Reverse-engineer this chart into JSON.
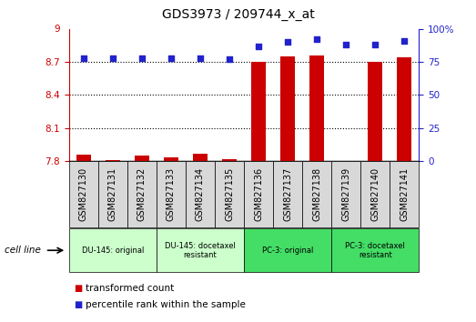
{
  "title": "GDS3973 / 209744_x_at",
  "samples": [
    "GSM827130",
    "GSM827131",
    "GSM827132",
    "GSM827133",
    "GSM827134",
    "GSM827135",
    "GSM827136",
    "GSM827137",
    "GSM827138",
    "GSM827139",
    "GSM827140",
    "GSM827141"
  ],
  "bar_values": [
    7.86,
    7.81,
    7.85,
    7.83,
    7.87,
    7.82,
    8.7,
    8.75,
    8.76,
    7.8,
    8.7,
    8.74
  ],
  "percentile_values": [
    78,
    78,
    78,
    78,
    78,
    77,
    87,
    90,
    92,
    88,
    88,
    91
  ],
  "ymin": 7.8,
  "ymax": 9.0,
  "yticks_left": [
    7.8,
    8.1,
    8.4,
    8.7
  ],
  "ytop_label": "9",
  "right_yticks": [
    0,
    25,
    50,
    75,
    100
  ],
  "bar_color": "#cc0000",
  "dot_color": "#2222cc",
  "groups": [
    {
      "label": "DU-145: original",
      "start": 0,
      "end": 3,
      "color": "#ccffcc"
    },
    {
      "label": "DU-145: docetaxel\nresistant",
      "start": 3,
      "end": 6,
      "color": "#ccffcc"
    },
    {
      "label": "PC-3: original",
      "start": 6,
      "end": 9,
      "color": "#44dd66"
    },
    {
      "label": "PC-3: docetaxel\nresistant",
      "start": 9,
      "end": 12,
      "color": "#44dd66"
    }
  ],
  "cell_line_label": "cell line",
  "legend_bar_label": "transformed count",
  "legend_dot_label": "percentile rank within the sample",
  "title_fontsize": 10,
  "tick_fontsize": 7.5,
  "label_fontsize": 7.5,
  "sample_box_color": "#d8d8d8",
  "bg_color": "#ffffff"
}
